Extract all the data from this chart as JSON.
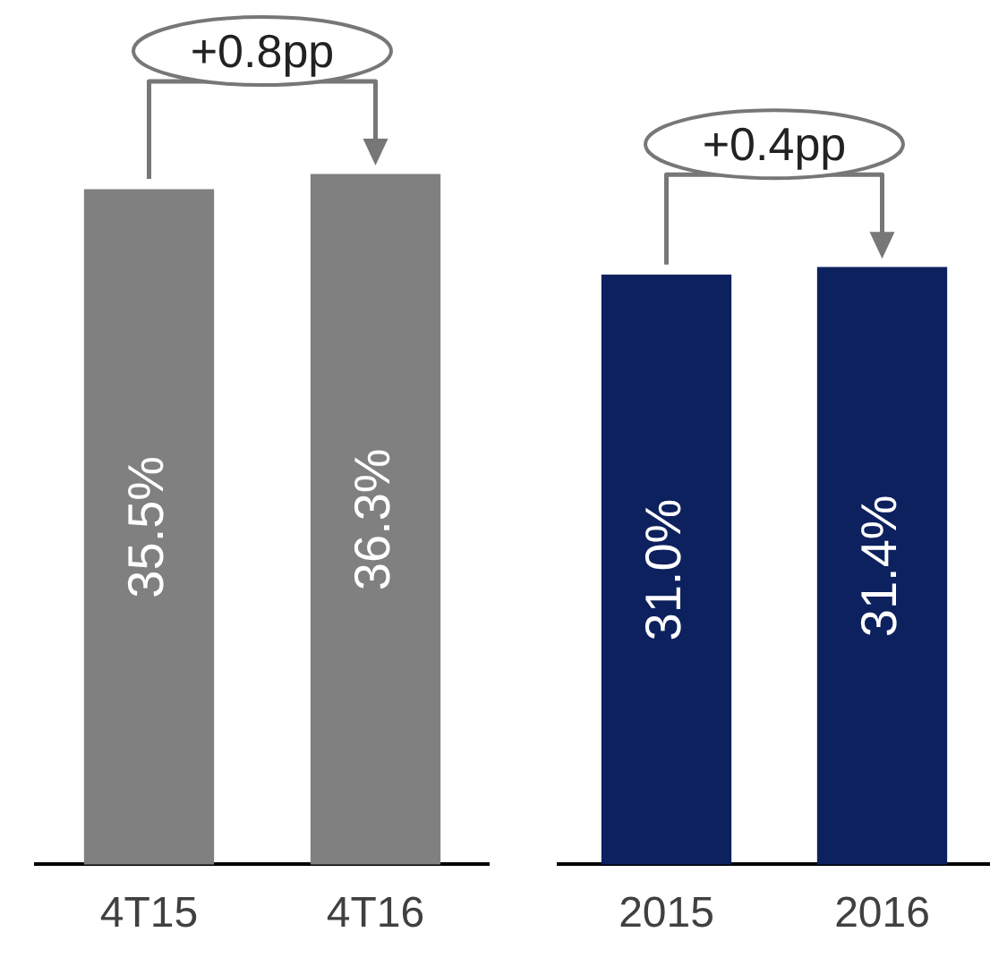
{
  "chart_data": [
    {
      "type": "bar",
      "categories": [
        "4T15",
        "4T16"
      ],
      "values": [
        35.5,
        36.3
      ],
      "color": "#808080",
      "value_labels": [
        "35.5%",
        "36.3%"
      ],
      "annotations": [
        "+0.8pp"
      ]
    },
    {
      "type": "bar",
      "categories": [
        "2015",
        "2016"
      ],
      "values": [
        31.0,
        31.4
      ],
      "color": "#0d215e",
      "value_labels": [
        "31.0%",
        "31.4%"
      ],
      "annotations": [
        "+0.4pp"
      ]
    }
  ]
}
